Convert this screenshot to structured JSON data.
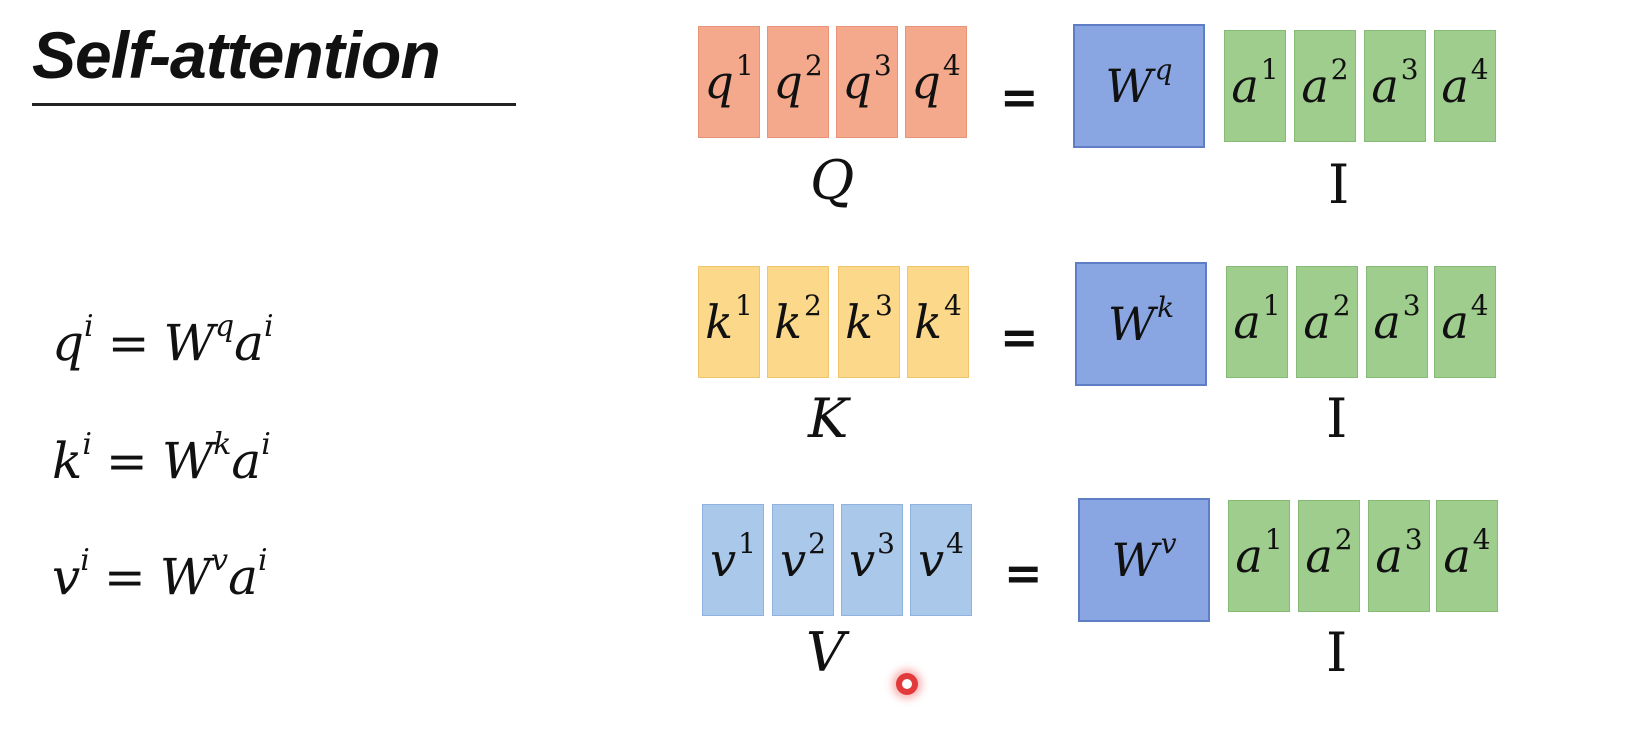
{
  "title": "Self-attention",
  "equations": [
    {
      "lhs": "q",
      "lhs_sup": "i",
      "rel": "=",
      "w": "W",
      "w_sup": "q",
      "a": "a",
      "a_sup": "i"
    },
    {
      "lhs": "k",
      "lhs_sup": "i",
      "rel": "=",
      "w": "W",
      "w_sup": "k",
      "a": "a",
      "a_sup": "i"
    },
    {
      "lhs": "v",
      "lhs_sup": "i",
      "rel": "=",
      "w": "W",
      "w_sup": "v",
      "a": "a",
      "a_sup": "i"
    }
  ],
  "rows": [
    {
      "lhs_cells": [
        {
          "base": "q",
          "sup": "1"
        },
        {
          "base": "q",
          "sup": "2"
        },
        {
          "base": "q",
          "sup": "3"
        },
        {
          "base": "q",
          "sup": "4"
        }
      ],
      "lhs_label": "Q",
      "equals": "=",
      "weight": {
        "base": "W",
        "sup": "q"
      },
      "input_cells": [
        {
          "base": "a",
          "sup": "1"
        },
        {
          "base": "a",
          "sup": "2"
        },
        {
          "base": "a",
          "sup": "3"
        },
        {
          "base": "a",
          "sup": "4"
        }
      ],
      "input_label": "I",
      "color": "#f5a98c"
    },
    {
      "lhs_cells": [
        {
          "base": "k",
          "sup": "1"
        },
        {
          "base": "k",
          "sup": "2"
        },
        {
          "base": "k",
          "sup": "3"
        },
        {
          "base": "k",
          "sup": "4"
        }
      ],
      "lhs_label": "K",
      "equals": "=",
      "weight": {
        "base": "W",
        "sup": "k"
      },
      "input_cells": [
        {
          "base": "a",
          "sup": "1"
        },
        {
          "base": "a",
          "sup": "2"
        },
        {
          "base": "a",
          "sup": "3"
        },
        {
          "base": "a",
          "sup": "4"
        }
      ],
      "input_label": "I",
      "color": "#fbd88a"
    },
    {
      "lhs_cells": [
        {
          "base": "v",
          "sup": "1"
        },
        {
          "base": "v",
          "sup": "2"
        },
        {
          "base": "v",
          "sup": "3"
        },
        {
          "base": "v",
          "sup": "4"
        }
      ],
      "lhs_label": "V",
      "equals": "=",
      "weight": {
        "base": "W",
        "sup": "v"
      },
      "input_cells": [
        {
          "base": "a",
          "sup": "1"
        },
        {
          "base": "a",
          "sup": "2"
        },
        {
          "base": "a",
          "sup": "3"
        },
        {
          "base": "a",
          "sup": "4"
        }
      ],
      "input_label": "I",
      "color": "#a9c8ea"
    }
  ],
  "colors": {
    "weight": "#8aa6e2",
    "input": "#9fcd8e",
    "cursor": "#e23a3a"
  }
}
